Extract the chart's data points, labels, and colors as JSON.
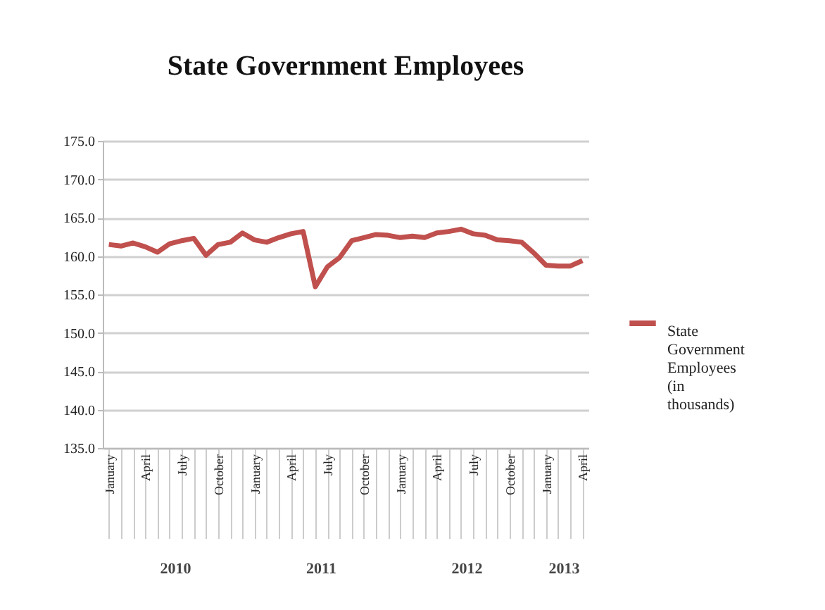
{
  "chart_data": {
    "type": "line",
    "title": "State Government Employees",
    "categories": [
      "January",
      null,
      null,
      "April",
      null,
      null,
      "July",
      null,
      null,
      "October",
      null,
      null,
      "January",
      null,
      null,
      "April",
      null,
      null,
      "July",
      null,
      null,
      "October",
      null,
      null,
      "January",
      null,
      null,
      "April",
      null,
      null,
      "July",
      null,
      null,
      "October",
      null,
      null,
      "January",
      null,
      null,
      "April"
    ],
    "series": [
      {
        "name": "State Government Employees (in thousands)",
        "color": "#c0504d",
        "values": [
          161.5,
          161.3,
          161.7,
          161.2,
          160.5,
          161.6,
          162.0,
          162.3,
          160.1,
          161.5,
          161.8,
          163.0,
          162.1,
          161.8,
          162.4,
          162.9,
          163.2,
          156.0,
          158.6,
          159.8,
          162.0,
          162.4,
          162.8,
          162.7,
          162.4,
          162.6,
          162.4,
          163.0,
          163.2,
          163.5,
          162.9,
          162.7,
          162.1,
          162.0,
          161.8,
          160.4,
          158.8,
          158.7,
          158.7,
          159.4
        ]
      }
    ],
    "ylim": [
      135,
      175
    ],
    "yticks": [
      {
        "value": 135,
        "label": "135.0"
      },
      {
        "value": 140,
        "label": "140.0"
      },
      {
        "value": 145,
        "label": "145.0"
      },
      {
        "value": 150,
        "label": "150.0"
      },
      {
        "value": 155,
        "label": "155.0"
      },
      {
        "value": 160,
        "label": "160.0"
      },
      {
        "value": 165,
        "label": "165.0"
      },
      {
        "value": 170,
        "label": "170.0"
      },
      {
        "value": 175,
        "label": "175.0"
      }
    ],
    "annotations": [
      "2010",
      "2011",
      "2012",
      "2013"
    ],
    "grid": "y",
    "legend": "right",
    "marker": "none",
    "line_style": "solid"
  }
}
